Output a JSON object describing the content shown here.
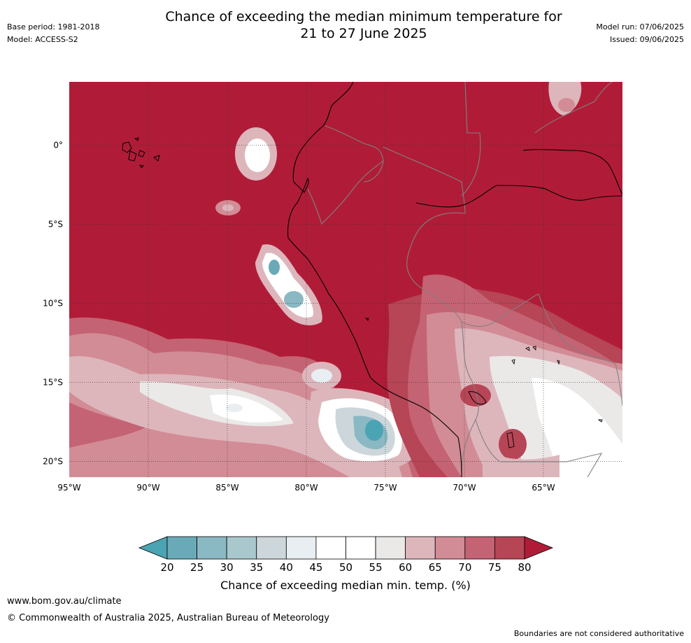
{
  "header": {
    "base_period": "Base period: 1981-2018",
    "model": "Model: ACCESS-S2",
    "title_line1": "Chance of exceeding the median minimum temperature for",
    "title_line2": "21 to 27 June 2025",
    "model_run": "Model run: 07/06/2025",
    "issued": "Issued: 09/06/2025"
  },
  "map": {
    "lat_labels": [
      "0°",
      "5°S",
      "10°S",
      "15°S",
      "20°S"
    ],
    "lon_labels": [
      "95°W",
      "90°W",
      "85°W",
      "80°W",
      "75°W",
      "70°W",
      "65°W"
    ],
    "lon_range": [
      -95,
      -60
    ],
    "lat_range": [
      -21,
      4
    ],
    "background_color": "#b01c37",
    "coast_color": "#000000",
    "border_color": "#808080"
  },
  "colorbar": {
    "ticks": [
      "20",
      "25",
      "30",
      "35",
      "40",
      "45",
      "50",
      "55",
      "60",
      "65",
      "70",
      "75",
      "80"
    ],
    "colors": [
      "#6aaab8",
      "#8ab8c3",
      "#a9c8cd",
      "#cdd7db",
      "#e8eef1",
      "#ffffff",
      "#ffffff",
      "#ebe8e8",
      "#ddb6bc",
      "#d28c95",
      "#c46373",
      "#b64556"
    ],
    "under_color": "#4aa4b3",
    "over_color": "#b01c37",
    "label": "Chance of exceeding median min. temp. (%)"
  },
  "footer": {
    "url": "www.bom.gov.au/climate",
    "copyright": "© Commonwealth of Australia 2025, Australian Bureau of Meteorology",
    "note": "Boundaries are not considered authoritative"
  }
}
